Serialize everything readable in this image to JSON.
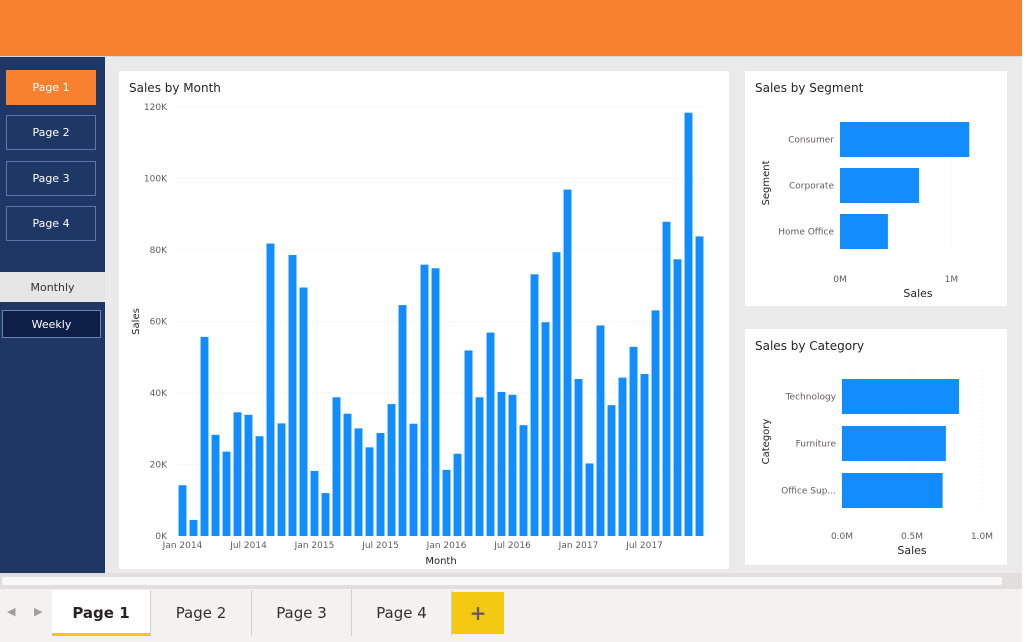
{
  "sidebar": {
    "pages": [
      {
        "label": "Page 1",
        "active": true
      },
      {
        "label": "Page 2",
        "active": false
      },
      {
        "label": "Page 3",
        "active": false
      },
      {
        "label": "Page 4",
        "active": false
      }
    ],
    "toggle_monthly": "Monthly",
    "toggle_weekly": "Weekly"
  },
  "colors": {
    "accent": "#f7812f",
    "sidebar": "#1e3764",
    "bar": "#118dff",
    "tab_underline": "#f2c811"
  },
  "tabs": {
    "items": [
      {
        "label": "Page 1",
        "active": true
      },
      {
        "label": "Page 2",
        "active": false
      },
      {
        "label": "Page 3",
        "active": false
      },
      {
        "label": "Page 4",
        "active": false
      }
    ],
    "add_label": "+",
    "prev_icon": "chevron-left-icon",
    "next_icon": "chevron-right-icon"
  },
  "chart_data": [
    {
      "type": "bar",
      "title": "Sales by Month",
      "xlabel": "Month",
      "ylabel": "Sales",
      "ylim": [
        0,
        120000
      ],
      "yticks": [
        "0K",
        "20K",
        "40K",
        "60K",
        "80K",
        "100K",
        "120K"
      ],
      "xticks": [
        "Jan 2014",
        "Jul 2014",
        "Jan 2015",
        "Jul 2015",
        "Jan 2016",
        "Jul 2016",
        "Jan 2017",
        "Jul 2017"
      ],
      "categories": [
        "Jan 2014",
        "Feb 2014",
        "Mar 2014",
        "Apr 2014",
        "May 2014",
        "Jun 2014",
        "Jul 2014",
        "Aug 2014",
        "Sep 2014",
        "Oct 2014",
        "Nov 2014",
        "Dec 2014",
        "Jan 2015",
        "Feb 2015",
        "Mar 2015",
        "Apr 2015",
        "May 2015",
        "Jun 2015",
        "Jul 2015",
        "Aug 2015",
        "Sep 2015",
        "Oct 2015",
        "Nov 2015",
        "Dec 2015",
        "Jan 2016",
        "Feb 2016",
        "Mar 2016",
        "Apr 2016",
        "May 2016",
        "Jun 2016",
        "Jul 2016",
        "Aug 2016",
        "Sep 2016",
        "Oct 2016",
        "Nov 2016",
        "Dec 2016",
        "Jan 2017",
        "Feb 2017",
        "Mar 2017",
        "Apr 2017",
        "May 2017",
        "Jun 2017",
        "Jul 2017",
        "Aug 2017",
        "Sep 2017",
        "Oct 2017",
        "Nov 2017",
        "Dec 2017"
      ],
      "values": [
        14200,
        4500,
        55700,
        28300,
        23600,
        34600,
        33900,
        27900,
        81800,
        31500,
        78600,
        69500,
        18200,
        12000,
        38800,
        34200,
        30100,
        24800,
        28800,
        36900,
        64600,
        31400,
        75900,
        74900,
        18500,
        23000,
        51900,
        38800,
        56900,
        40300,
        39500,
        31000,
        73200,
        59800,
        79400,
        96900,
        43900,
        20300,
        58900,
        36600,
        44300,
        52900,
        45300,
        63100,
        87900,
        77400,
        118400,
        83800
      ]
    },
    {
      "type": "bar",
      "orientation": "horizontal",
      "title": "Sales by Segment",
      "xlabel": "Sales",
      "ylabel": "Segment",
      "categories": [
        "Consumer",
        "Corporate",
        "Home Office"
      ],
      "values": [
        1160000,
        710000,
        430000
      ],
      "xlim": [
        0,
        1400000
      ],
      "xticks": [
        "0M",
        "1M"
      ]
    },
    {
      "type": "bar",
      "orientation": "horizontal",
      "title": "Sales by Category",
      "xlabel": "Sales",
      "ylabel": "Category",
      "categories": [
        "Technology",
        "Furniture",
        "Office Sup..."
      ],
      "values": [
        836000,
        742000,
        719000
      ],
      "xlim": [
        0,
        1000000
      ],
      "xticks": [
        "0.0M",
        "0.5M",
        "1.0M"
      ]
    }
  ]
}
